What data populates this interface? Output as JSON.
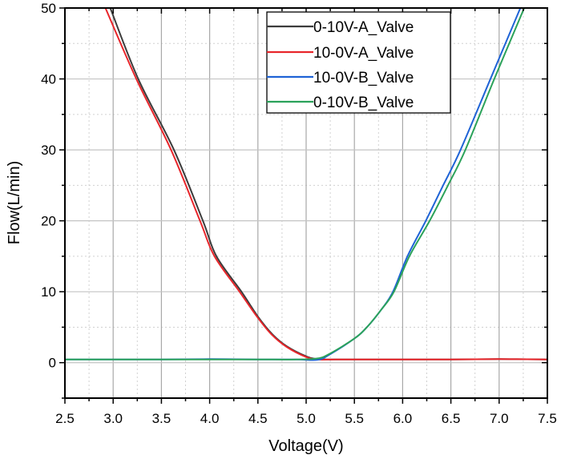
{
  "chart_data": {
    "type": "line",
    "title": "",
    "xlabel": "Voltage(V)",
    "ylabel": "Flow(L/min)",
    "xlim": [
      2.5,
      7.5
    ],
    "ylim": [
      -5,
      50
    ],
    "x_ticks": [
      "2.5",
      "3.0",
      "3.5",
      "4.0",
      "4.5",
      "5.0",
      "5.5",
      "6.0",
      "6.5",
      "7.0",
      "7.5"
    ],
    "x_tick_values": [
      2.5,
      3.0,
      3.5,
      4.0,
      4.5,
      5.0,
      5.5,
      6.0,
      6.5,
      7.0,
      7.5
    ],
    "x_minor_step": 0.25,
    "y_ticks": [
      "0",
      "10",
      "20",
      "30",
      "40",
      "50"
    ],
    "y_tick_values": [
      0,
      10,
      20,
      30,
      40,
      50
    ],
    "y_minor_step": 5,
    "grid": true,
    "legend_position": "top-center",
    "series": [
      {
        "name": "0-10V-A_Valve",
        "color": "#3c3c3c",
        "x": [
          2.97,
          3.26,
          3.63,
          3.93,
          4.07,
          4.33,
          4.5,
          4.65,
          4.8,
          5.0,
          5.12,
          5.3,
          5.6,
          6.0,
          6.5,
          7.0,
          7.5
        ],
        "y": [
          50,
          40,
          30,
          20,
          15,
          10,
          6.5,
          4.0,
          2.3,
          0.9,
          0.5,
          0.45,
          0.45,
          0.45,
          0.45,
          0.5,
          0.45
        ]
      },
      {
        "name": "10-0V-A_Valve",
        "color": "#e8262b",
        "x": [
          2.92,
          3.24,
          3.6,
          3.9,
          4.05,
          4.31,
          4.49,
          4.64,
          4.8,
          5.0,
          5.12,
          5.3,
          5.6,
          6.0,
          6.5,
          7.0,
          7.5
        ],
        "y": [
          50,
          40,
          30,
          20,
          15,
          10,
          6.5,
          4.0,
          2.2,
          0.8,
          0.45,
          0.45,
          0.45,
          0.45,
          0.45,
          0.5,
          0.45
        ]
      },
      {
        "name": "10-0V-B_Valve",
        "color": "#1f63d6",
        "x": [
          2.5,
          3.0,
          3.5,
          4.0,
          4.5,
          4.9,
          5.12,
          5.25,
          5.5,
          5.63,
          5.78,
          5.9,
          6.05,
          6.24,
          6.42,
          6.6,
          6.91,
          7.22
        ],
        "y": [
          0.45,
          0.45,
          0.45,
          0.5,
          0.45,
          0.45,
          0.4,
          1.2,
          3.4,
          5.0,
          7.5,
          10,
          15,
          20,
          25,
          30,
          40,
          50
        ]
      },
      {
        "name": "0-10V-B_Valve",
        "color": "#2ba25a",
        "x": [
          2.5,
          3.0,
          3.5,
          4.0,
          4.5,
          4.9,
          5.12,
          5.25,
          5.5,
          5.63,
          5.78,
          5.91,
          6.07,
          6.28,
          6.47,
          6.65,
          6.95,
          7.26
        ],
        "y": [
          0.45,
          0.45,
          0.45,
          0.45,
          0.45,
          0.45,
          0.6,
          1.3,
          3.4,
          5.0,
          7.5,
          10,
          15,
          20,
          25,
          30,
          40,
          50
        ]
      }
    ]
  }
}
